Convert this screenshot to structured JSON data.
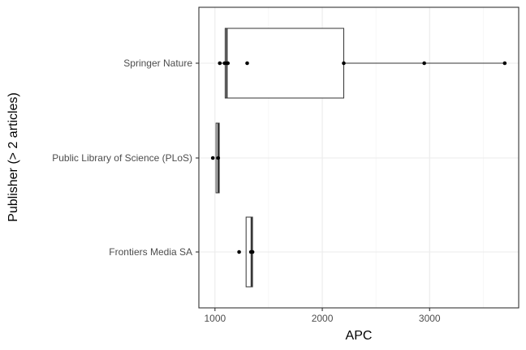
{
  "chart_data": {
    "type": "boxplot",
    "orientation": "horizontal",
    "xlabel": "APC",
    "ylabel": "Publisher (> 2 articles)",
    "xlim": [
      850,
      3830
    ],
    "xticks": [
      1000,
      2000,
      3000
    ],
    "xtick_labels": [
      "1000",
      "2000",
      "3000"
    ],
    "grid": true,
    "categories": [
      "Springer Nature",
      "Public Library of Science (PLoS)",
      "Frontiers Media SA"
    ],
    "boxes": [
      {
        "category": "Springer Nature",
        "min": 1045,
        "q1": 1095,
        "median": 1110,
        "q3": 2200,
        "max": 3700
      },
      {
        "category": "Public Library of Science (PLoS)",
        "min": 1010,
        "q1": 1010,
        "median": 1030,
        "q3": 1040,
        "max": 1040
      },
      {
        "category": "Frontiers Media SA",
        "min": 1290,
        "q1": 1290,
        "median": 1340,
        "q3": 1350,
        "max": 1350
      }
    ],
    "points": [
      {
        "category": "Springer Nature",
        "x": [
          1045,
          1090,
          1110,
          1120,
          1300,
          2200,
          2950,
          3700
        ]
      },
      {
        "category": "Public Library of Science (PLoS)",
        "x": [
          980,
          1030
        ]
      },
      {
        "category": "Frontiers Media SA",
        "x": [
          1225,
          1335,
          1350
        ]
      }
    ]
  }
}
